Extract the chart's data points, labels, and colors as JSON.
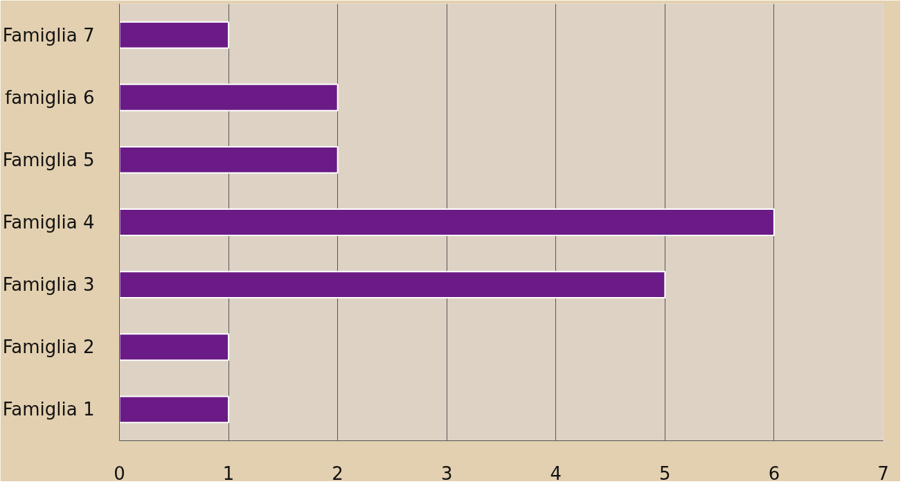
{
  "chart_data": {
    "type": "bar",
    "orientation": "horizontal",
    "categories": [
      "Famiglia 7",
      "famiglia 6",
      "Famiglia 5",
      "Famiglia 4",
      "Famiglia 3",
      "Famiglia 2",
      "Famiglia 1"
    ],
    "values": [
      1,
      2,
      2,
      6,
      5,
      1,
      1
    ],
    "color": "#6a1b86",
    "xlim": [
      0,
      7
    ],
    "xticks": [
      0,
      1,
      2,
      3,
      4,
      5,
      6,
      7
    ],
    "grid": "x"
  }
}
